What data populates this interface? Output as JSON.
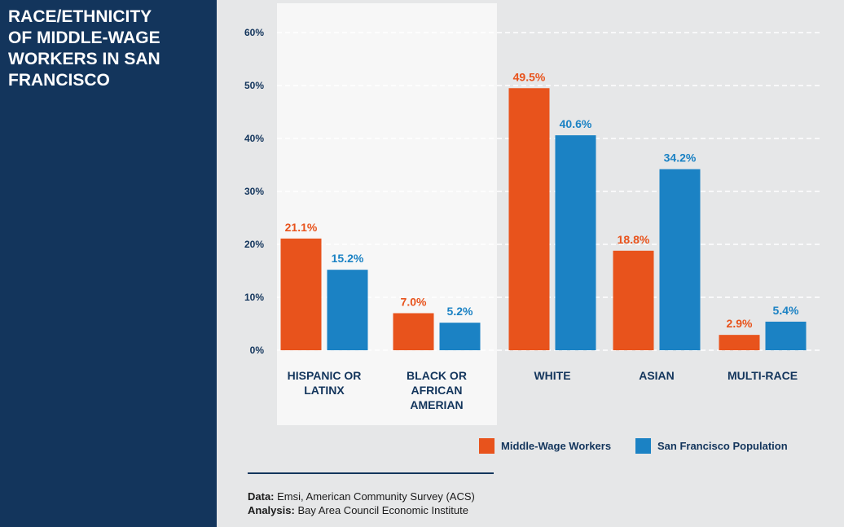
{
  "sidebar": {
    "title": "RACE/ETHNICITY\nOF MIDDLE-WAGE\nWORKERS IN SAN\nFRANCISCO"
  },
  "colors": {
    "sidebar_bg": "#13355c",
    "middle_wage": "#e8531c",
    "sf_population": "#1b82c4",
    "axis_text": "#13355c"
  },
  "chart_data": {
    "type": "bar",
    "title": "RACE/ETHNICITY OF MIDDLE-WAGE WORKERS IN SAN FRANCISCO",
    "categories": [
      "HISPANIC OR\nLATINX",
      "BLACK OR\nAFRICAN\nAMERIAN",
      "WHITE",
      "ASIAN",
      "MULTI-RACE"
    ],
    "highlighted_categories": [
      0,
      1
    ],
    "series": [
      {
        "name": "Middle-Wage Workers",
        "color": "#e8531c",
        "values": [
          21.1,
          7.0,
          49.5,
          18.8,
          2.9
        ],
        "labels": [
          "21.1%",
          "7.0%",
          "49.5%",
          "18.8%",
          "2.9%"
        ]
      },
      {
        "name": "San Francisco Population",
        "color": "#1b82c4",
        "values": [
          15.2,
          5.2,
          40.6,
          34.2,
          5.4
        ],
        "labels": [
          "15.2%",
          "5.2%",
          "40.6%",
          "34.2%",
          "5.4%"
        ]
      }
    ],
    "yticks": [
      "0%",
      "10%",
      "20%",
      "30%",
      "40%",
      "50%",
      "60%"
    ],
    "ylim": [
      0,
      60
    ],
    "grid": true,
    "xlabel": "",
    "ylabel": "",
    "legend_position": "bottom-right"
  },
  "source": {
    "data_label": "Data:",
    "data_text": "Emsi, American Community Survey (ACS)",
    "analysis_label": "Analysis:",
    "analysis_text": "Bay Area Council Economic Institute"
  }
}
